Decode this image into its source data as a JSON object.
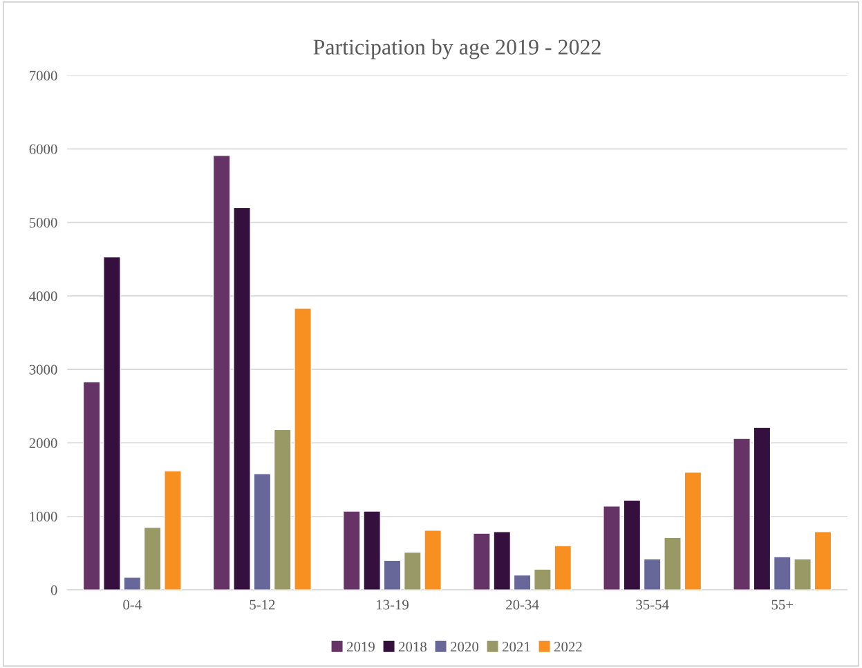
{
  "chart_data": {
    "type": "bar",
    "title": "Participation by age 2019 - 2022",
    "categories": [
      "0-4",
      "5-12",
      "13-19",
      "20-34",
      "35-54",
      "55+"
    ],
    "series": [
      {
        "name": "2019",
        "color": "#663366",
        "values": [
          2830,
          5910,
          1070,
          770,
          1140,
          2060
        ]
      },
      {
        "name": "2018",
        "color": "#35103f",
        "values": [
          4530,
          5200,
          1070,
          790,
          1220,
          2210
        ]
      },
      {
        "name": "2020",
        "color": "#676799",
        "values": [
          170,
          1580,
          400,
          200,
          420,
          450
        ]
      },
      {
        "name": "2021",
        "color": "#999966",
        "values": [
          850,
          2180,
          510,
          280,
          710,
          420
        ]
      },
      {
        "name": "2022",
        "color": "#f79020",
        "values": [
          1620,
          3830,
          810,
          600,
          1600,
          790
        ]
      }
    ],
    "ylim": [
      0,
      7000
    ],
    "yticks": [
      0,
      1000,
      2000,
      3000,
      4000,
      5000,
      6000,
      7000
    ],
    "grid": "y",
    "legend": "bottom"
  }
}
